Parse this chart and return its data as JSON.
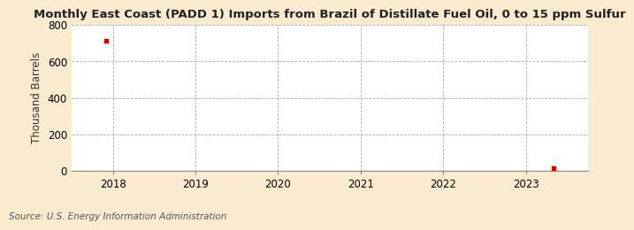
{
  "title": "Monthly East Coast (PADD 1) Imports from Brazil of Distillate Fuel Oil, 0 to 15 ppm Sulfur",
  "ylabel": "Thousand Barrels",
  "source": "Source: U.S. Energy Information Administration",
  "background_color": "#faebd0",
  "plot_bg_color": "#ffffff",
  "grid_color": "#aaaaaa",
  "point1_x": 2017.92,
  "point1_y": 714,
  "point2_x": 2023.33,
  "point2_y": 14,
  "point_color": "#cc0000",
  "xlim_min": 2017.5,
  "xlim_max": 2023.75,
  "ylim_min": 0,
  "ylim_max": 800,
  "yticks": [
    0,
    200,
    400,
    600,
    800
  ],
  "xticks": [
    2018,
    2019,
    2020,
    2021,
    2022,
    2023
  ],
  "title_fontsize": 9.5,
  "label_fontsize": 8.5,
  "source_fontsize": 7.5
}
